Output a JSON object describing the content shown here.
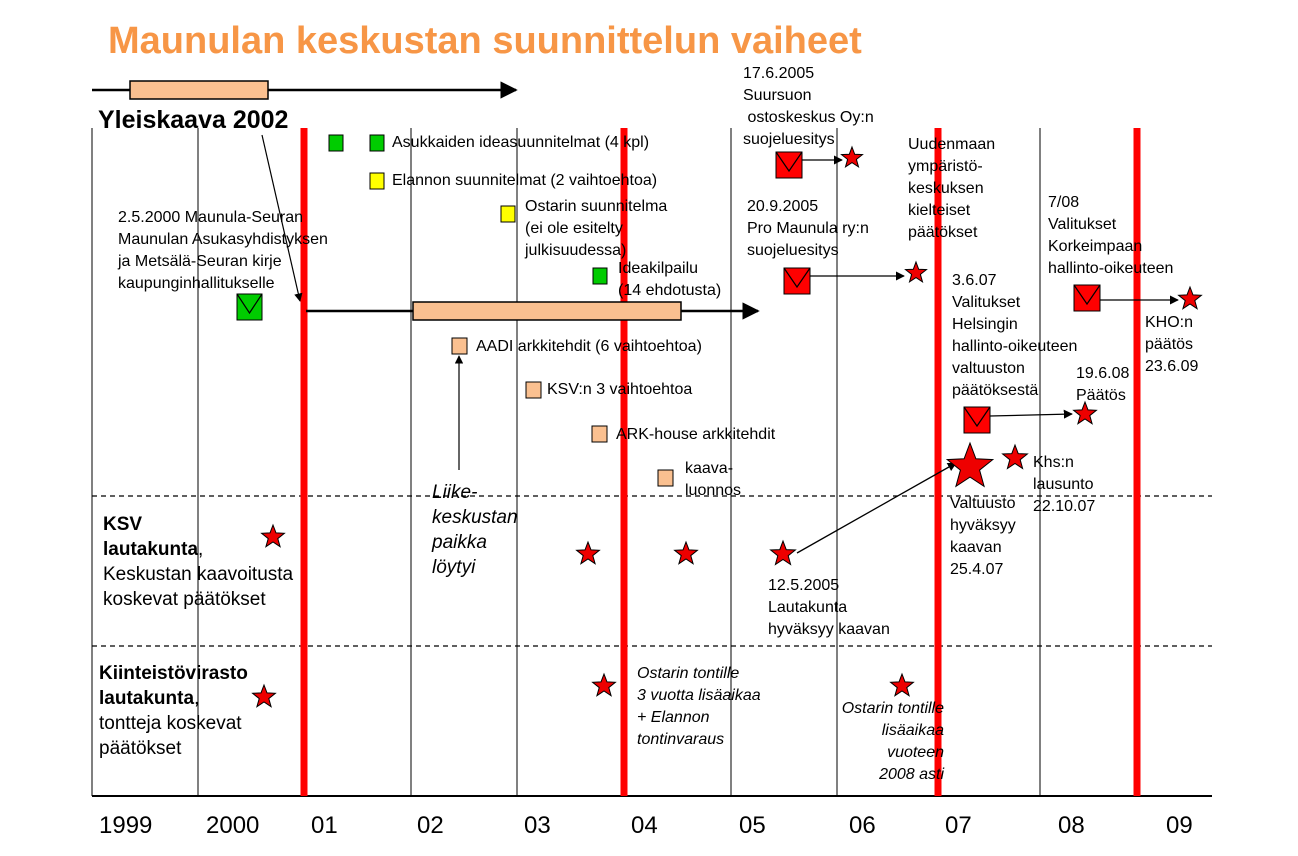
{
  "title": "Maunulan keskustan suunnittelun vaiheet",
  "yleiskaava": "Yleiskaava 2002",
  "years": [
    "1999",
    "2000",
    "01",
    "02",
    "03",
    "04",
    "05",
    "06",
    "07",
    "08",
    "09"
  ],
  "colors": {
    "title": "#F79646",
    "red": "#FF0000",
    "green": "#00CC00",
    "yellow": "#FFFF00",
    "orange": "#FAC090",
    "star": "#EE0000"
  },
  "legend": {
    "vertical_lines": "red",
    "sections": [
      "top",
      "KSV",
      "Kiinteistövirasto"
    ]
  },
  "top": {
    "asukkaiden": "Asukkaiden ideasuunnitelmat (4 kpl)",
    "elannon": "Elannon suunnitelmat (2 vaihtoehtoa)",
    "ostari": [
      "Ostarin suunnitelma",
      "(ei ole esitelty",
      "julkisuudessa)"
    ],
    "kirje": [
      "2.5.2000 Maunula-Seuran",
      "Maunulan Asukasyhdistyksen",
      "ja Metsälä-Seuran kirje",
      "kaupunginhallitukselle"
    ],
    "ideakilpailu": [
      "Ideakilpailu",
      "(14 ehdotusta)"
    ],
    "aadi": "AADI arkkitehdit (6 vaihtoehtoa)",
    "ksv3": "KSV:n 3 vaihtoehtoa",
    "arkhouse": "ARK-house arkkitehdit",
    "kaavaluonnos": [
      "kaava-",
      "luonnos"
    ],
    "liike": [
      "Liike-",
      "keskustan",
      "paikka",
      "löytyi"
    ],
    "suursuo": [
      "17.6.2005",
      "Suursuon",
      " ostoskeskus Oy:n",
      "suojeluesitys"
    ],
    "promaunula": [
      "20.9.2005",
      "Pro Maunula ry:n",
      "suojeluesitys"
    ],
    "uudenmaan": [
      "Uudenmaan",
      "ympäristö-",
      "keskuksen",
      "kielteiset",
      "päätökset"
    ],
    "hallinto": [
      "3.6.07",
      "Valitukset",
      "Helsingin",
      "hallinto-oikeuteen",
      "valtuuston",
      "päätöksestä"
    ],
    "korkein": [
      "7/08",
      "Valitukset",
      "Korkeimpaan",
      "hallinto-oikeuteen"
    ],
    "kho": [
      "KHO:n",
      "päätös",
      "23.6.09"
    ],
    "paatos0608": [
      "19.6.08",
      "Päätös"
    ],
    "khs": [
      "Khs:n",
      "lausunto",
      "22.10.07"
    ],
    "valtuusto": [
      "Valtuusto",
      "hyväksyy",
      "kaavan",
      "25.4.07"
    ]
  },
  "ksv": {
    "label_bold": [
      "KSV",
      "lautakunta"
    ],
    "label_rest": ",",
    "label_lines": [
      "Keskustan kaavoitusta",
      "koskevat päätökset"
    ],
    "lautakunta": [
      "12.5.2005",
      "Lautakunta",
      "hyväksyy kaavan"
    ]
  },
  "kv": {
    "label_bold": [
      "Kiinteistövirasto",
      "lautakunta"
    ],
    "label_rest": ",",
    "label_lines": [
      "tontteja koskevat",
      "päätökset"
    ],
    "ostari1": [
      "Ostarin tontille",
      "3 vuotta lisäaikaa",
      "+ Elannon",
      "tontinvaraus"
    ],
    "ostari2": [
      "Ostarin tontille",
      "lisäaikaa",
      "vuoteen",
      "2008 asti"
    ]
  }
}
